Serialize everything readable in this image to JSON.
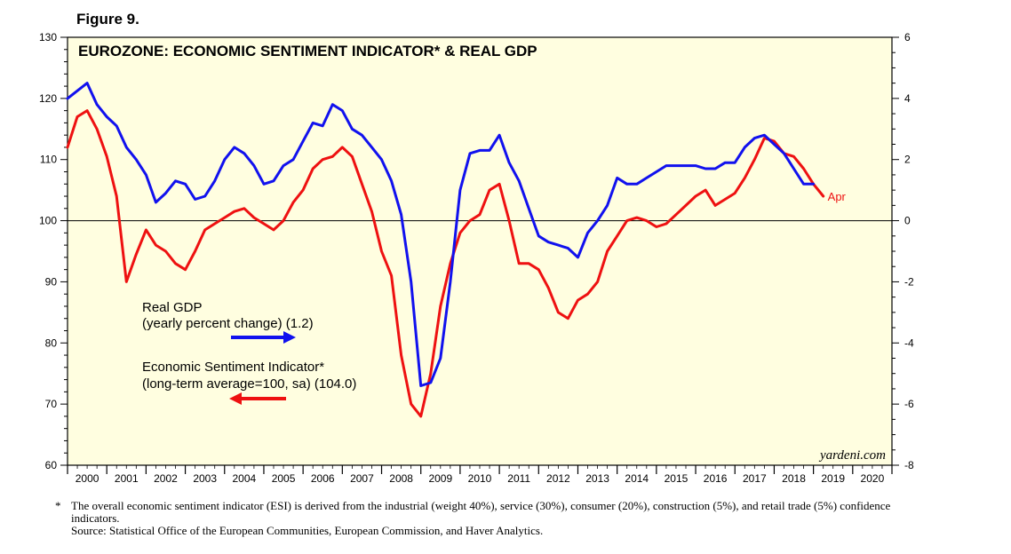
{
  "figure_label": "Figure 9.",
  "chart_data": {
    "type": "line",
    "title": "EUROZONE: ECONOMIC SENTIMENT INDICATOR* & REAL GDP",
    "x_tick_labels": [
      "2000",
      "2001",
      "2002",
      "2003",
      "2004",
      "2005",
      "2006",
      "2007",
      "2008",
      "2009",
      "2010",
      "2011",
      "2012",
      "2013",
      "2014",
      "2015",
      "2016",
      "2017",
      "2018",
      "2019",
      "2020"
    ],
    "xlim": [
      2000.0,
      2021.0
    ],
    "left_axis": {
      "ylim": [
        60,
        130
      ],
      "ticks": [
        60,
        70,
        80,
        90,
        100,
        110,
        120,
        130
      ]
    },
    "right_axis": {
      "ylim": [
        -8,
        6
      ],
      "ticks": [
        -8,
        -6,
        -4,
        -2,
        0,
        2,
        4,
        6
      ]
    },
    "zero_line": 100,
    "grid": false,
    "background": "#fffee0",
    "series": [
      {
        "name": "Real GDP",
        "legend_text": "Real GDP",
        "legend_subtext": "(yearly percent change) (1.2)",
        "axis": "right",
        "color": "#1111ee",
        "x": [
          2000.0,
          2000.5,
          2000.75,
          2001.0,
          2001.25,
          2001.5,
          2001.75,
          2002.0,
          2002.25,
          2002.5,
          2002.75,
          2003.0,
          2003.25,
          2003.5,
          2003.75,
          2004.0,
          2004.25,
          2004.5,
          2004.75,
          2005.0,
          2005.25,
          2005.5,
          2005.75,
          2006.0,
          2006.25,
          2006.5,
          2006.75,
          2007.0,
          2007.25,
          2007.5,
          2007.75,
          2008.0,
          2008.25,
          2008.5,
          2008.75,
          2009.0,
          2009.25,
          2009.5,
          2009.75,
          2010.0,
          2010.25,
          2010.5,
          2010.75,
          2011.0,
          2011.25,
          2011.5,
          2011.75,
          2012.0,
          2012.25,
          2012.5,
          2012.75,
          2013.0,
          2013.25,
          2013.5,
          2013.75,
          2014.0,
          2014.25,
          2014.5,
          2014.75,
          2015.0,
          2015.25,
          2015.5,
          2015.75,
          2016.0,
          2016.25,
          2016.5,
          2016.75,
          2017.0,
          2017.25,
          2017.5,
          2017.75,
          2018.0,
          2018.25,
          2018.5,
          2018.75,
          2019.0
        ],
        "y": [
          4.0,
          4.5,
          3.8,
          3.4,
          3.1,
          2.4,
          2.0,
          1.5,
          0.6,
          0.9,
          1.3,
          1.2,
          0.7,
          0.8,
          1.3,
          2.0,
          2.4,
          2.2,
          1.8,
          1.2,
          1.3,
          1.8,
          2.0,
          2.6,
          3.2,
          3.1,
          3.8,
          3.6,
          3.0,
          2.8,
          2.4,
          2.0,
          1.3,
          0.2,
          -2.0,
          -5.4,
          -5.3,
          -4.5,
          -2.0,
          1.0,
          2.2,
          2.3,
          2.3,
          2.8,
          1.9,
          1.3,
          0.4,
          -0.5,
          -0.7,
          -0.8,
          -0.9,
          -1.2,
          -0.4,
          0.0,
          0.5,
          1.4,
          1.2,
          1.2,
          1.4,
          1.6,
          1.8,
          1.8,
          1.8,
          1.8,
          1.7,
          1.7,
          1.9,
          1.9,
          2.4,
          2.7,
          2.8,
          2.5,
          2.2,
          1.7,
          1.2,
          1.2
        ]
      },
      {
        "name": "Economic Sentiment Indicator*",
        "legend_text": "Economic Sentiment Indicator*",
        "legend_subtext": "(long-term average=100, sa) (104.0)",
        "axis": "left",
        "color": "#ee1111",
        "end_label": "Apr",
        "x": [
          2000.0,
          2000.25,
          2000.5,
          2000.75,
          2001.0,
          2001.25,
          2001.5,
          2001.75,
          2002.0,
          2002.25,
          2002.5,
          2002.75,
          2003.0,
          2003.25,
          2003.5,
          2003.75,
          2004.0,
          2004.25,
          2004.5,
          2004.75,
          2005.0,
          2005.25,
          2005.5,
          2005.75,
          2006.0,
          2006.25,
          2006.5,
          2006.75,
          2007.0,
          2007.25,
          2007.5,
          2007.75,
          2008.0,
          2008.25,
          2008.5,
          2008.75,
          2009.0,
          2009.25,
          2009.5,
          2009.75,
          2010.0,
          2010.25,
          2010.5,
          2010.75,
          2011.0,
          2011.25,
          2011.5,
          2011.75,
          2012.0,
          2012.25,
          2012.5,
          2012.75,
          2013.0,
          2013.25,
          2013.5,
          2013.75,
          2014.0,
          2014.25,
          2014.5,
          2014.75,
          2015.0,
          2015.25,
          2015.5,
          2015.75,
          2016.0,
          2016.25,
          2016.5,
          2016.75,
          2017.0,
          2017.25,
          2017.5,
          2017.75,
          2018.0,
          2018.25,
          2018.5,
          2018.75,
          2019.0,
          2019.25
        ],
        "y": [
          112.0,
          117.0,
          118.0,
          115.0,
          110.5,
          104.0,
          90.0,
          94.5,
          98.5,
          96.0,
          95.0,
          93.0,
          92.0,
          95.0,
          98.5,
          99.5,
          100.5,
          101.5,
          102.0,
          100.5,
          99.5,
          98.5,
          100.0,
          103.0,
          105.0,
          108.5,
          110.0,
          110.5,
          112.0,
          110.5,
          106.0,
          101.5,
          95.0,
          91.0,
          78.0,
          70.0,
          68.0,
          75.0,
          86.0,
          93.0,
          98.0,
          100.0,
          101.0,
          105.0,
          106.0,
          100.0,
          93.0,
          93.0,
          92.0,
          89.0,
          85.0,
          84.0,
          87.0,
          88.0,
          90.0,
          95.0,
          97.5,
          100.0,
          100.5,
          100.0,
          99.0,
          99.5,
          101.0,
          102.5,
          104.0,
          105.0,
          102.5,
          103.5,
          104.5,
          107.0,
          110.0,
          113.5,
          113.0,
          111.0,
          110.5,
          108.5,
          106.0,
          104.0
        ]
      }
    ],
    "watermark": "yardeni.com"
  },
  "footnote": "The overall economic sentiment indicator (ESI) is derived from the industrial (weight 40%), service (30%), consumer (20%), construction (5%), and retail trade (5%) confidence indicators.",
  "footnote_marker": "*",
  "source": "Source: Statistical Office of the European Communities, European Commission, and Haver Analytics."
}
